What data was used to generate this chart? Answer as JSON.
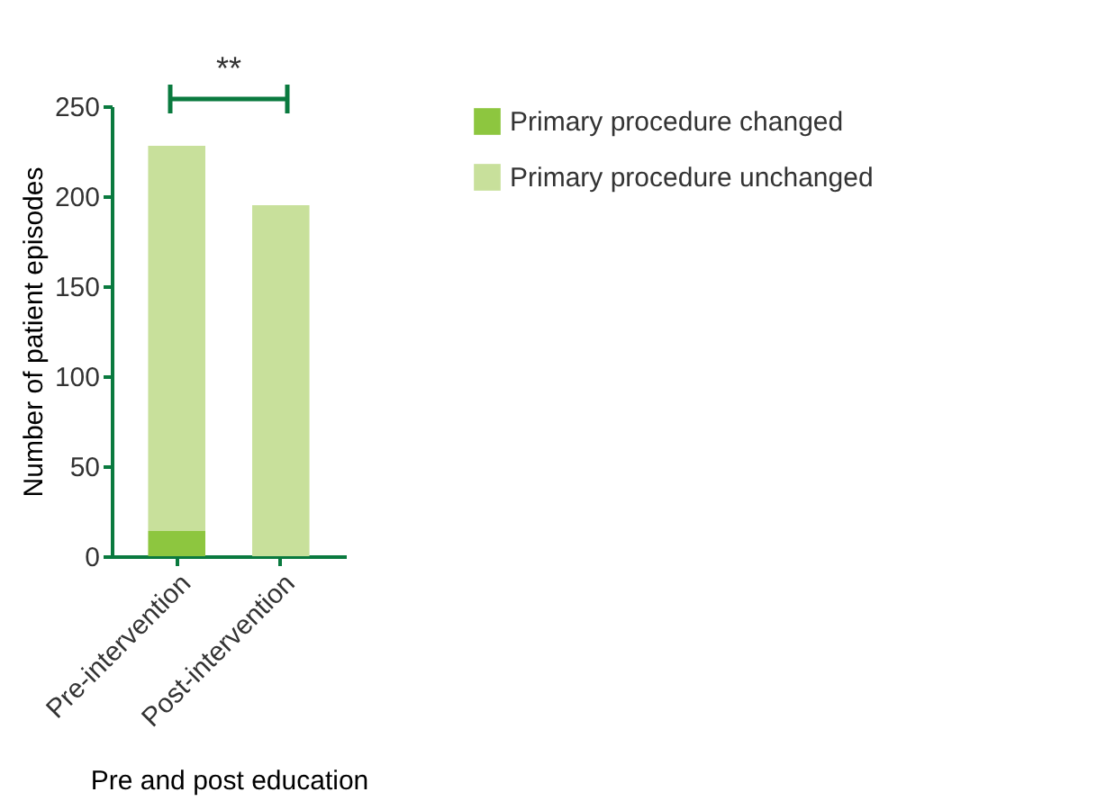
{
  "chart_data": {
    "type": "bar",
    "stacked": true,
    "xlabel": "Pre and post education",
    "ylabel": "Number of patient episodes",
    "categories": [
      "Pre-intervention",
      "Post-intervention"
    ],
    "series": [
      {
        "name": "Primary procedure changed",
        "color": "#8dc63f",
        "values": [
          14,
          0
        ]
      },
      {
        "name": "Primary procedure unchanged",
        "color": "#c8e09b",
        "values": [
          214,
          195
        ]
      }
    ],
    "ylim": [
      0,
      250
    ],
    "yticks": [
      0,
      50,
      100,
      150,
      200,
      250
    ],
    "grid": false,
    "legend": "top right",
    "annotations": [
      "**"
    ]
  }
}
